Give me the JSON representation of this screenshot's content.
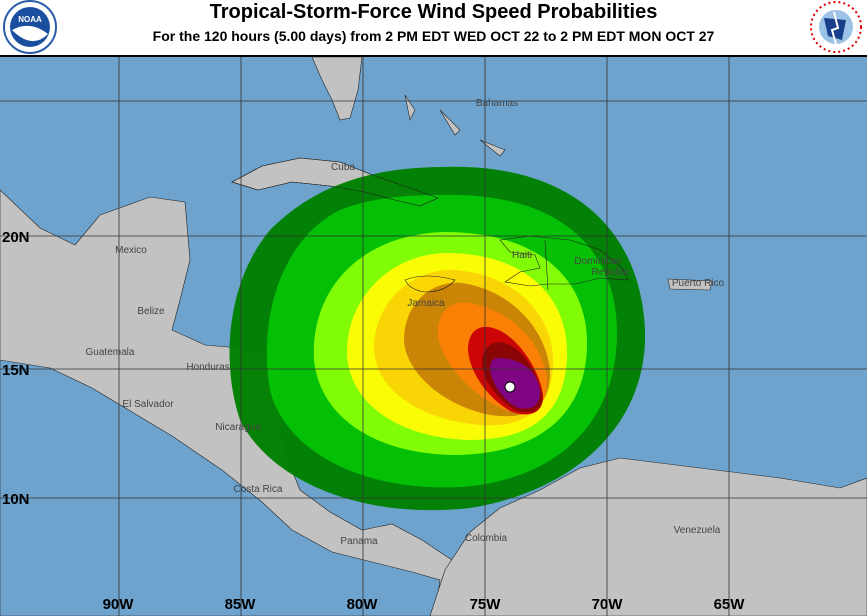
{
  "header": {
    "title": "Tropical-Storm-Force Wind Speed Probabilities",
    "subtitle": "For the 120 hours (5.00 days) from 2 PM EDT WED OCT 22 to 2 PM EDT MON OCT 27",
    "left_logo": "NOAA",
    "right_logo": "NATIONAL WEATHER SERVICE"
  },
  "map": {
    "longitude_labels": [
      "90W",
      "85W",
      "80W",
      "75W",
      "70W",
      "65W"
    ],
    "latitude_labels": [
      "20N",
      "15N",
      "10N"
    ],
    "place_labels": {
      "bahamas": "Bahamas",
      "cuba": "Cuba",
      "mexico": "Mexico",
      "belize": "Belize",
      "guatemala": "Guatemala",
      "honduras": "Honduras",
      "el_salvador": "El Salvador",
      "nicaragua": "Nicaragua",
      "costa_rica": "Costa Rica",
      "panama": "Panama",
      "colombia": "Colombia",
      "venezuela": "Venezuela",
      "jamaica": "Jamaica",
      "haiti": "Haiti",
      "dominican_1": "Dominican",
      "dominican_2": "Republic",
      "puerto_rico": "Puerto Rico"
    },
    "colors": {
      "ocean": "#6ea3cd",
      "land": "#c2c2c2",
      "probability_bands": [
        "#008000",
        "#00c000",
        "#80ff00",
        "#ffff00",
        "#ffd700",
        "#cd8500",
        "#ff8000",
        "#d00000",
        "#8b0000",
        "#800080"
      ]
    },
    "storm_center_marker": "white-dot"
  }
}
